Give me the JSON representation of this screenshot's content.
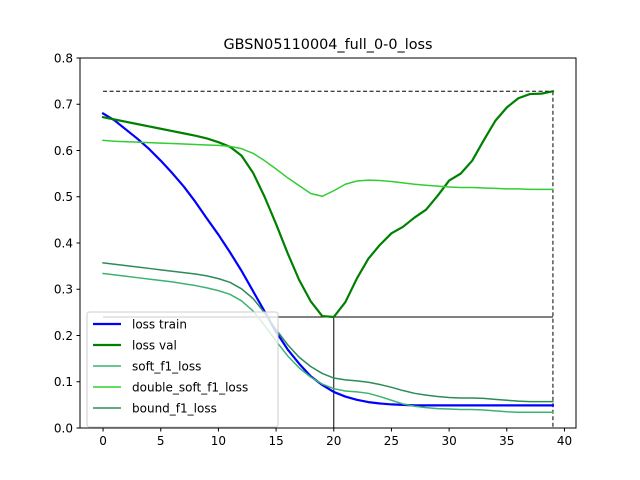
{
  "chart_data": {
    "type": "line",
    "title": "GBSN05110004_full_0-0_loss",
    "xlabel": "",
    "ylabel": "",
    "xlim": [
      -2,
      41
    ],
    "ylim": [
      0,
      0.8
    ],
    "xticks": [
      0,
      5,
      10,
      15,
      20,
      25,
      30,
      35,
      40
    ],
    "yticks": [
      0.0,
      0.1,
      0.2,
      0.3,
      0.4,
      0.5,
      0.6,
      0.7,
      0.8
    ],
    "grid": false,
    "legend_position": "lower-left",
    "x": [
      0,
      1,
      2,
      3,
      4,
      5,
      6,
      7,
      8,
      9,
      10,
      11,
      12,
      13,
      14,
      15,
      16,
      17,
      18,
      19,
      20,
      21,
      22,
      23,
      24,
      25,
      26,
      27,
      28,
      29,
      30,
      31,
      32,
      33,
      34,
      35,
      36,
      37,
      38,
      39
    ],
    "series": [
      {
        "name": "loss train",
        "color": "#0000ff",
        "width": 2.2,
        "values": [
          0.68,
          0.665,
          0.645,
          0.625,
          0.603,
          0.578,
          0.551,
          0.522,
          0.489,
          0.453,
          0.418,
          0.38,
          0.34,
          0.296,
          0.252,
          0.208,
          0.17,
          0.139,
          0.112,
          0.093,
          0.078,
          0.068,
          0.061,
          0.056,
          0.053,
          0.051,
          0.05,
          0.049,
          0.049,
          0.049,
          0.049,
          0.049,
          0.049,
          0.049,
          0.049,
          0.049,
          0.049,
          0.049,
          0.049,
          0.049
        ]
      },
      {
        "name": "loss val",
        "color": "#008000",
        "width": 2.2,
        "values": [
          0.672,
          0.667,
          0.662,
          0.657,
          0.652,
          0.647,
          0.642,
          0.637,
          0.632,
          0.626,
          0.618,
          0.608,
          0.589,
          0.552,
          0.5,
          0.441,
          0.378,
          0.32,
          0.274,
          0.242,
          0.24,
          0.272,
          0.323,
          0.366,
          0.396,
          0.421,
          0.435,
          0.455,
          0.472,
          0.502,
          0.535,
          0.55,
          0.578,
          0.622,
          0.664,
          0.693,
          0.713,
          0.722,
          0.723,
          0.728
        ]
      },
      {
        "name": "soft_f1_loss",
        "color": "#3cb371",
        "width": 1.5,
        "values": [
          0.334,
          0.331,
          0.328,
          0.325,
          0.322,
          0.319,
          0.316,
          0.312,
          0.308,
          0.303,
          0.297,
          0.289,
          0.275,
          0.253,
          0.222,
          0.188,
          0.156,
          0.13,
          0.11,
          0.095,
          0.085,
          0.08,
          0.078,
          0.075,
          0.068,
          0.06,
          0.052,
          0.047,
          0.044,
          0.042,
          0.041,
          0.04,
          0.04,
          0.039,
          0.037,
          0.035,
          0.034,
          0.034,
          0.034,
          0.034
        ]
      },
      {
        "name": "double_soft_f1_loss",
        "color": "#32cd32",
        "width": 1.5,
        "values": [
          0.622,
          0.62,
          0.619,
          0.618,
          0.617,
          0.616,
          0.615,
          0.614,
          0.613,
          0.612,
          0.611,
          0.609,
          0.604,
          0.594,
          0.578,
          0.56,
          0.541,
          0.524,
          0.507,
          0.501,
          0.513,
          0.527,
          0.534,
          0.536,
          0.535,
          0.533,
          0.53,
          0.527,
          0.525,
          0.523,
          0.521,
          0.52,
          0.52,
          0.519,
          0.518,
          0.517,
          0.517,
          0.516,
          0.516,
          0.516
        ]
      },
      {
        "name": "bound_f1_loss",
        "color": "#2e8b57",
        "width": 1.5,
        "values": [
          0.357,
          0.354,
          0.351,
          0.348,
          0.345,
          0.342,
          0.339,
          0.336,
          0.333,
          0.329,
          0.323,
          0.315,
          0.301,
          0.28,
          0.249,
          0.213,
          0.18,
          0.153,
          0.133,
          0.118,
          0.108,
          0.104,
          0.102,
          0.099,
          0.094,
          0.088,
          0.081,
          0.075,
          0.071,
          0.068,
          0.066,
          0.065,
          0.065,
          0.064,
          0.062,
          0.06,
          0.058,
          0.057,
          0.057,
          0.057
        ]
      }
    ],
    "reference_lines": [
      {
        "type": "dashed",
        "points": [
          [
            0,
            0.728
          ],
          [
            39,
            0.728
          ]
        ]
      },
      {
        "type": "dashed",
        "points": [
          [
            39,
            0.728
          ],
          [
            39,
            0
          ]
        ]
      },
      {
        "type": "solid",
        "points": [
          [
            0,
            0.24
          ],
          [
            39,
            0.24
          ]
        ]
      },
      {
        "type": "solid",
        "points": [
          [
            20,
            0.24
          ],
          [
            20,
            0
          ]
        ]
      }
    ]
  }
}
